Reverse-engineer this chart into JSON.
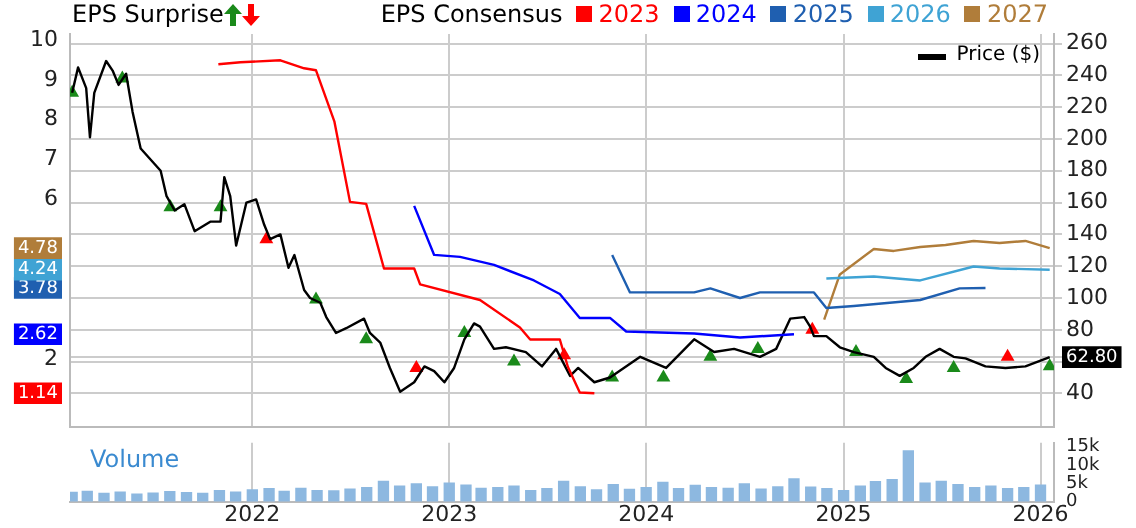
{
  "chart_data": [
    {
      "type": "line",
      "title": "EPS Surprise",
      "legend_title": "EPS Consensus",
      "legend": "top",
      "grid": true,
      "tick_labels": "y",
      "xlim": [
        "2021-01-28",
        "2026-01-26"
      ],
      "xticks": [
        {
          "value": "2022-01-01",
          "label": null
        },
        {
          "value": "2023-01-01",
          "label": null
        },
        {
          "value": "2024-01-01",
          "label": null
        },
        {
          "value": "2025-01-01",
          "label": null
        },
        {
          "value": "2026-01-01",
          "label": null
        }
      ],
      "ylim": [
        0.3,
        10.15
      ],
      "yticks": [
        {
          "value": 1.14,
          "label": "1.14"
        },
        2,
        {
          "value": 2.62,
          "label": "2.62"
        },
        {
          "value": 3.78,
          "label": "3.78"
        },
        {
          "value": 4.24,
          "label": "4.24"
        },
        {
          "value": 4.78,
          "label": "4.78"
        },
        6,
        7,
        8,
        9,
        10
      ],
      "y2lim": [
        19,
        266
      ],
      "y2ticks": [
        40,
        {
          "value": 60,
          "label": null
        },
        {
          "value": 62.8,
          "label": "62.80"
        },
        80,
        100,
        120,
        140,
        160,
        180,
        200,
        220,
        240,
        260
      ],
      "series": [
        {
          "name": "2023",
          "color": "#ff0000",
          "axis": "y",
          "x": [
            "2021-10-30",
            "2021-12-10",
            "2022-02-22",
            "2022-04-07",
            "2022-04-29",
            "2022-06-02",
            "2022-07-01",
            "2022-07-31",
            "2022-09-02",
            "2022-10-28",
            "2022-11-08",
            "2023-02-27",
            "2023-05-12",
            "2023-05-31",
            "2023-07-25",
            "2023-08-09",
            "2023-08-31",
            "2023-09-27"
          ],
          "values": [
            9.39,
            9.44,
            9.49,
            9.29,
            9.24,
            7.96,
            5.94,
            5.89,
            4.27,
            4.27,
            3.87,
            3.48,
            2.79,
            2.49,
            2.49,
            1.8,
            1.16,
            1.14
          ]
        },
        {
          "name": "2024",
          "color": "#0000ff",
          "axis": "y",
          "x": [
            "2022-10-28",
            "2022-12-04",
            "2023-01-21",
            "2023-03-25",
            "2023-06-07",
            "2023-07-25",
            "2023-08-31",
            "2023-10-26",
            "2023-11-25",
            "2024-03-30",
            "2024-06-23",
            "2024-10-01"
          ],
          "values": [
            5.84,
            4.61,
            4.56,
            4.36,
            3.97,
            3.63,
            3.03,
            3.03,
            2.69,
            2.64,
            2.54,
            2.62
          ]
        },
        {
          "name": "2025",
          "color": "#1f5fb0",
          "axis": "y",
          "x": [
            "2023-10-30",
            "2023-12-02",
            "2024-03-30",
            "2024-04-29",
            "2024-06-23",
            "2024-07-30",
            "2024-11-07",
            "2024-11-30",
            "2025-01-20",
            "2025-05-23",
            "2025-08-04",
            "2025-09-21"
          ],
          "values": [
            4.61,
            3.67,
            3.67,
            3.77,
            3.53,
            3.67,
            3.67,
            3.28,
            3.33,
            3.48,
            3.77,
            3.78
          ]
        },
        {
          "name": "2026",
          "color": "#3fa3d4",
          "axis": "y",
          "x": [
            "2024-11-30",
            "2025-02-26",
            "2025-05-23",
            "2025-08-30",
            "2025-10-17",
            "2026-01-18"
          ],
          "values": [
            4.02,
            4.07,
            3.97,
            4.32,
            4.27,
            4.24
          ]
        },
        {
          "name": "2027",
          "color": "#b07d3a",
          "axis": "y",
          "x": [
            "2024-11-26",
            "2024-12-25",
            "2025-02-26",
            "2025-04-04",
            "2025-05-23",
            "2025-07-09",
            "2025-08-30",
            "2025-10-17",
            "2025-12-04",
            "2026-01-18"
          ],
          "values": [
            2.99,
            4.12,
            4.76,
            4.71,
            4.81,
            4.86,
            4.96,
            4.91,
            4.96,
            4.78
          ]
        },
        {
          "name": "Price ($)",
          "color": "#000000",
          "axis": "y2",
          "x": [
            "2021-02-01",
            "2021-02-12",
            "2021-02-27",
            "2021-03-06",
            "2021-03-14",
            "2021-04-05",
            "2021-04-17",
            "2021-04-28",
            "2021-05-12",
            "2021-05-24",
            "2021-06-08",
            "2021-07-15",
            "2021-07-26",
            "2021-08-10",
            "2021-08-28",
            "2021-09-16",
            "2021-10-15",
            "2021-11-03",
            "2021-11-10",
            "2021-11-21",
            "2021-12-02",
            "2021-12-21",
            "2022-01-08",
            "2022-01-23",
            "2022-02-03",
            "2022-02-22",
            "2022-03-09",
            "2022-03-20",
            "2022-04-07",
            "2022-04-18",
            "2022-05-07",
            "2022-05-18",
            "2022-06-05",
            "2022-06-24",
            "2022-07-27",
            "2022-08-07",
            "2022-08-26",
            "2022-09-13",
            "2022-10-02",
            "2022-10-28",
            "2022-11-16",
            "2022-12-04",
            "2022-12-23",
            "2023-01-10",
            "2023-01-29",
            "2023-02-16",
            "2023-02-27",
            "2023-03-25",
            "2023-04-16",
            "2023-05-23",
            "2023-06-22",
            "2023-07-18",
            "2023-08-13",
            "2023-08-28",
            "2023-09-27",
            "2023-10-26",
            "2023-12-21",
            "2024-02-07",
            "2024-03-30",
            "2024-05-06",
            "2024-06-12",
            "2024-07-30",
            "2024-08-29",
            "2024-09-24",
            "2024-10-20",
            "2024-10-31",
            "2024-11-07",
            "2024-11-30",
            "2024-12-25",
            "2025-01-20",
            "2025-02-26",
            "2025-03-20",
            "2025-04-15",
            "2025-05-11",
            "2025-06-02",
            "2025-06-28",
            "2025-07-24",
            "2025-08-15",
            "2025-09-21",
            "2025-10-28",
            "2025-12-04",
            "2026-01-18"
          ],
          "values": [
            229,
            245,
            232,
            201,
            229,
            249,
            243,
            234,
            241,
            217,
            194,
            180,
            164,
            155,
            159,
            142,
            148,
            148,
            176,
            164,
            133,
            160,
            162,
            146,
            137,
            140,
            119,
            127,
            105,
            100,
            97,
            88,
            78,
            81,
            87,
            78,
            72,
            56,
            41,
            47,
            57,
            54,
            47,
            56,
            74,
            84,
            82,
            68,
            69,
            66,
            57,
            68,
            51,
            56,
            47,
            50,
            63,
            56,
            74,
            66,
            68,
            63,
            68,
            87,
            88,
            82,
            76,
            76,
            69,
            66,
            63,
            56,
            51,
            56,
            63,
            68,
            63,
            62,
            57,
            56,
            57,
            62.8
          ]
        },
        {
          "type": "scatter",
          "marker": "triangle",
          "color": "#1a8a1a",
          "axis": "y2",
          "x": [
            "2021-02-01",
            "2021-05-05",
            "2021-08-02",
            "2021-11-03",
            "2022-04-29",
            "2022-07-31",
            "2023-01-29",
            "2023-05-01",
            "2023-10-30",
            "2024-02-02",
            "2024-04-29",
            "2024-07-26",
            "2025-01-24",
            "2025-04-27",
            "2025-07-24",
            "2026-01-18"
          ],
          "values": [
            229,
            238,
            157,
            157,
            99,
            74,
            78,
            60,
            50,
            50,
            63,
            68,
            66,
            49,
            56,
            57
          ]
        },
        {
          "type": "scatter",
          "marker": "triangle",
          "color": "#ff0000",
          "axis": "y2",
          "x": [
            "2022-01-27",
            "2022-11-01",
            "2023-08-02",
            "2024-11-04",
            "2025-11-01"
          ],
          "values": [
            137,
            56,
            64,
            80,
            63
          ]
        }
      ]
    },
    {
      "type": "bar",
      "grid": "x",
      "annotations": [
        "Volume"
      ],
      "xlim": [
        "2021-01-28",
        "2026-01-26"
      ],
      "xticks": [
        {
          "value": "2022-01-01",
          "label": "2022"
        },
        {
          "value": "2023-01-01",
          "label": "2023"
        },
        {
          "value": "2024-01-01",
          "label": "2024"
        },
        {
          "value": "2025-01-01",
          "label": "2025"
        },
        {
          "value": "2026-01-01",
          "label": "2026"
        }
      ],
      "y2lim": [
        0,
        16000
      ],
      "y2ticks": [
        {
          "value": 0,
          "label": "0"
        },
        {
          "value": 5000,
          "label": "5k"
        },
        {
          "value": 10000,
          "label": "10k"
        },
        {
          "value": 15000,
          "label": "15k"
        }
      ],
      "x": [
        "2021-02",
        "2021-03",
        "2021-04",
        "2021-05",
        "2021-06",
        "2021-07",
        "2021-08",
        "2021-09",
        "2021-10",
        "2021-11",
        "2021-12",
        "2022-01",
        "2022-02",
        "2022-03",
        "2022-04",
        "2022-05",
        "2022-06",
        "2022-07",
        "2022-08",
        "2022-09",
        "2022-10",
        "2022-11",
        "2022-12",
        "2023-01",
        "2023-02",
        "2023-03",
        "2023-04",
        "2023-05",
        "2023-06",
        "2023-07",
        "2023-08",
        "2023-09",
        "2023-10",
        "2023-11",
        "2023-12",
        "2024-01",
        "2024-02",
        "2024-03",
        "2024-04",
        "2024-05",
        "2024-06",
        "2024-07",
        "2024-08",
        "2024-09",
        "2024-10",
        "2024-11",
        "2024-12",
        "2025-01",
        "2025-02",
        "2025-03",
        "2025-04",
        "2025-05",
        "2025-06",
        "2025-07",
        "2025-08",
        "2025-09",
        "2025-10",
        "2025-11",
        "2025-12",
        "2026-01"
      ],
      "series": [
        {
          "color": "#8db8e0",
          "axis": "y2",
          "values": [
            2500,
            2800,
            2200,
            2600,
            2000,
            2300,
            2700,
            2400,
            2200,
            3000,
            2600,
            3200,
            3500,
            2800,
            3600,
            3000,
            2900,
            3400,
            3800,
            5500,
            4200,
            4800,
            4000,
            5000,
            4500,
            3600,
            3800,
            4200,
            3000,
            3500,
            5500,
            4000,
            3200,
            4600,
            3300,
            3800,
            5200,
            3500,
            4400,
            3800,
            3600,
            4800,
            3400,
            4000,
            6200,
            3900,
            3500,
            3000,
            4200,
            5400,
            6000,
            13800,
            5000,
            5500,
            4600,
            3800,
            4200,
            3500,
            3800,
            4500
          ]
        }
      ]
    }
  ]
}
